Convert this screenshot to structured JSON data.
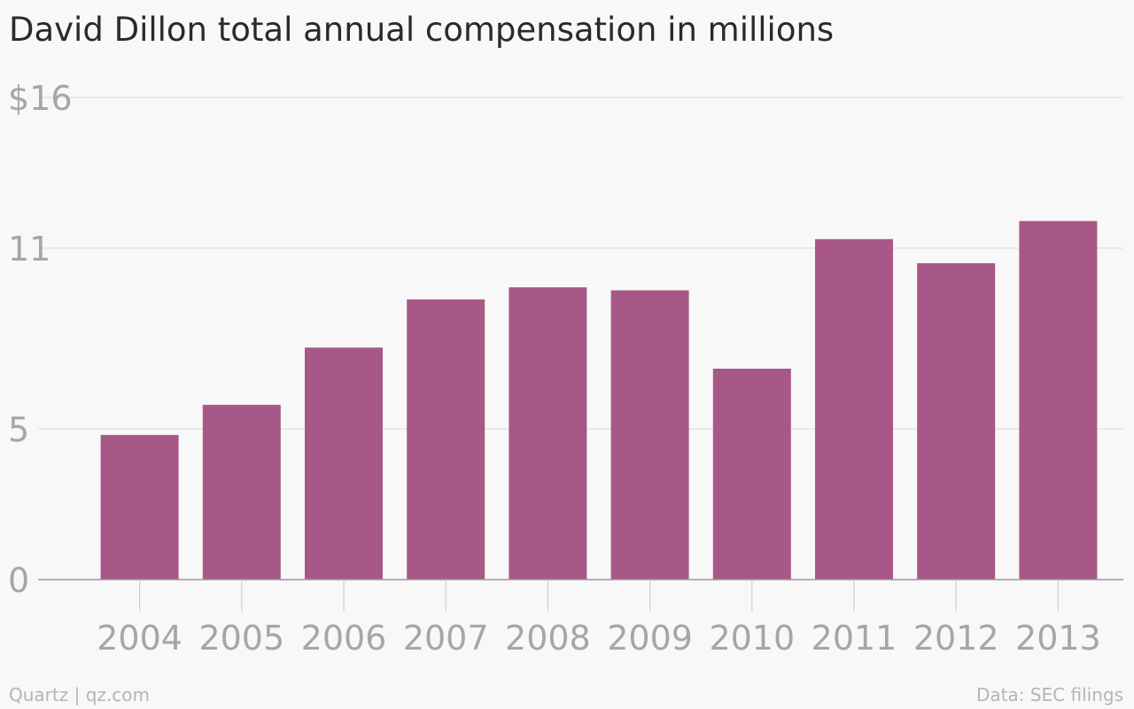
{
  "chart_data": {
    "type": "bar",
    "title": "David Dillon total annual compensation in millions",
    "categories": [
      "2004",
      "2005",
      "2006",
      "2007",
      "2008",
      "2009",
      "2010",
      "2011",
      "2012",
      "2013"
    ],
    "values": [
      4.8,
      5.8,
      7.7,
      9.3,
      9.7,
      9.6,
      7.0,
      11.3,
      10.5,
      11.9
    ],
    "y_ticks": [
      0,
      5,
      11,
      16
    ],
    "y_tick_labels": [
      "0",
      "5",
      "11",
      "$16"
    ],
    "ylim": [
      0,
      16
    ],
    "grid": true,
    "legend": "none",
    "colors": {
      "bar": "#a85887",
      "grid": "#e4e4e4",
      "axis": "#999999",
      "tick_text": "#a6a6a6"
    }
  },
  "footer": {
    "source": "Quartz | qz.com",
    "credit": "Data: SEC filings"
  }
}
